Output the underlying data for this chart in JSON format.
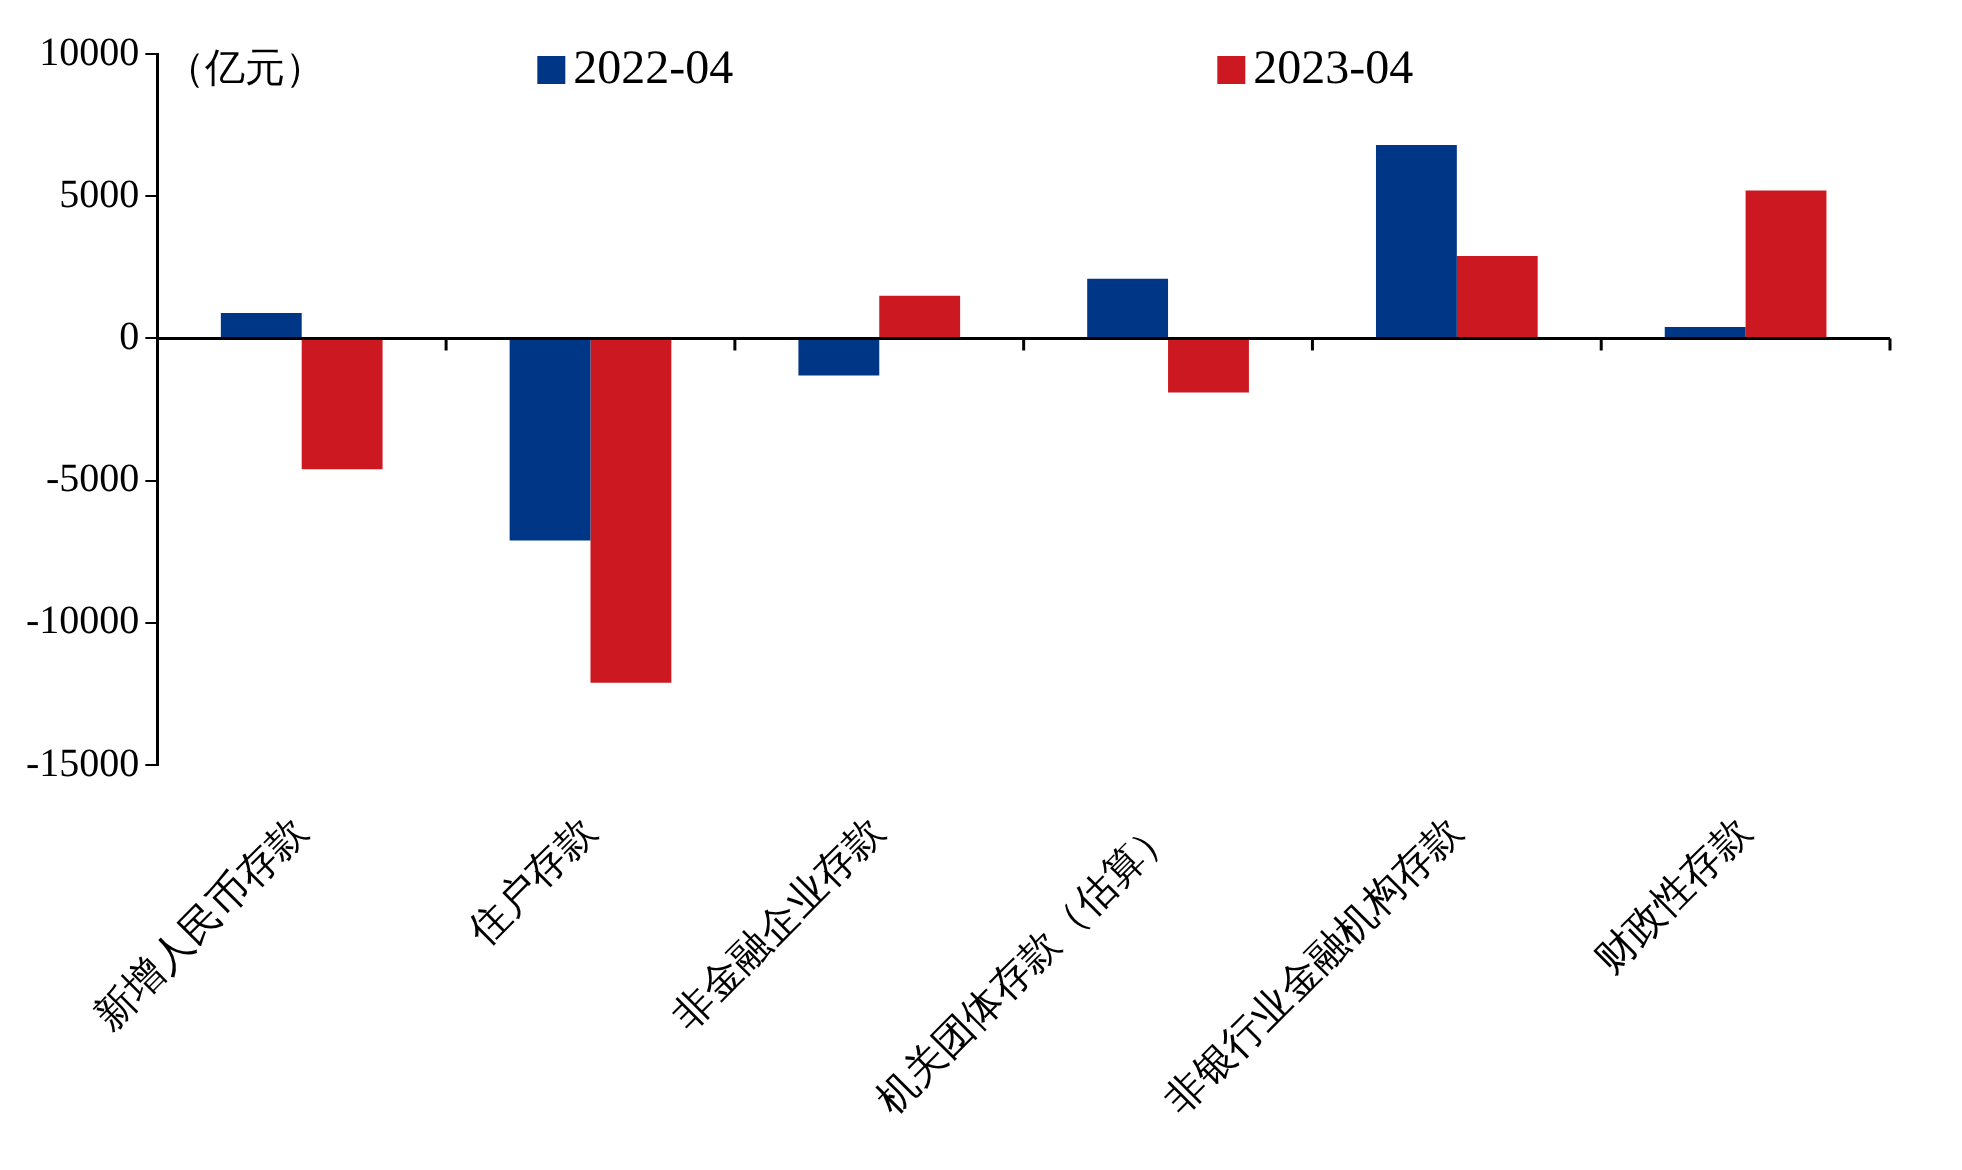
{
  "chart_data": {
    "type": "bar",
    "annotations": [
      "（亿元）"
    ],
    "categories": [
      "新增人民币存款",
      "住户存款",
      "非金融企业存款",
      "机关团体存款（估算）",
      "非银行业金融机构存款",
      "财政性存款"
    ],
    "series": [
      {
        "name": "2022-04",
        "color": "#003686",
        "values": [
          900,
          -7100,
          -1300,
          2100,
          6800,
          400
        ]
      },
      {
        "name": "2023-04",
        "color": "#cc1820",
        "values": [
          -4600,
          -12100,
          1500,
          -1900,
          2900,
          5200
        ]
      }
    ],
    "ylim": [
      -15000,
      10000
    ],
    "yticks": [
      -15000,
      -10000,
      -5000,
      0,
      5000,
      10000
    ],
    "legend": "top"
  }
}
